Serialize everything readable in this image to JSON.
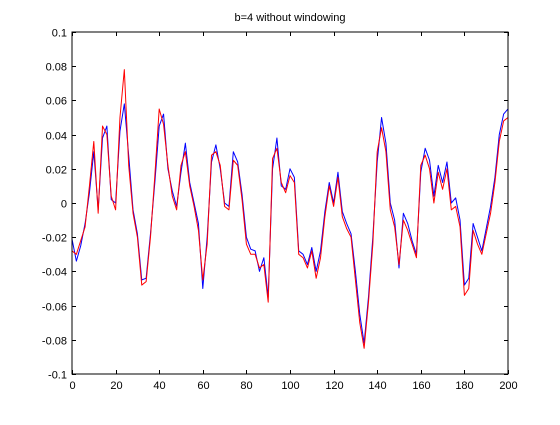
{
  "chart_data": {
    "type": "line",
    "title": "b=4 without windowing",
    "xlabel": "",
    "ylabel": "",
    "xlim": [
      0,
      200
    ],
    "ylim": [
      -0.1,
      0.1
    ],
    "xticks": [
      0,
      20,
      40,
      60,
      80,
      100,
      120,
      140,
      160,
      180,
      200
    ],
    "xtick_labels": [
      "0",
      "20",
      "40",
      "60",
      "80",
      "100",
      "120",
      "140",
      "160",
      "180",
      "200"
    ],
    "yticks": [
      -0.1,
      -0.08,
      -0.06,
      -0.04,
      -0.02,
      0,
      0.02,
      0.04,
      0.06,
      0.08,
      0.1
    ],
    "ytick_labels": [
      "-0.1",
      "-0.08",
      "-0.06",
      "-0.04",
      "-0.02",
      "0",
      "0.02",
      "0.04",
      "0.06",
      "0.08",
      "0.1"
    ],
    "grid": false,
    "legend": false,
    "x": [
      0,
      2,
      4,
      6,
      8,
      10,
      12,
      14,
      16,
      18,
      20,
      22,
      24,
      26,
      28,
      30,
      32,
      34,
      36,
      38,
      40,
      42,
      44,
      46,
      48,
      50,
      52,
      54,
      56,
      58,
      60,
      62,
      64,
      66,
      68,
      70,
      72,
      74,
      76,
      78,
      80,
      82,
      84,
      86,
      88,
      90,
      92,
      94,
      96,
      98,
      100,
      102,
      104,
      106,
      108,
      110,
      112,
      114,
      116,
      118,
      120,
      122,
      124,
      126,
      128,
      130,
      132,
      134,
      136,
      138,
      140,
      142,
      144,
      146,
      148,
      150,
      152,
      154,
      156,
      158,
      160,
      162,
      164,
      166,
      168,
      170,
      172,
      174,
      176,
      178,
      180,
      182,
      184,
      186,
      188,
      190,
      192,
      194,
      196,
      198,
      200
    ],
    "series": [
      {
        "color": "#0000ff",
        "values": [
          -0.021,
          -0.034,
          -0.025,
          -0.012,
          0.006,
          0.03,
          -0.004,
          0.038,
          0.045,
          0.002,
          0.0,
          0.042,
          0.058,
          0.028,
          -0.004,
          -0.018,
          -0.045,
          -0.044,
          -0.018,
          0.012,
          0.045,
          0.052,
          0.02,
          0.007,
          -0.002,
          0.018,
          0.035,
          0.012,
          0.0,
          -0.012,
          -0.05,
          -0.02,
          0.024,
          0.034,
          0.02,
          0.0,
          -0.002,
          0.03,
          0.024,
          0.005,
          -0.02,
          -0.027,
          -0.028,
          -0.04,
          -0.032,
          -0.055,
          0.02,
          0.038,
          0.01,
          0.008,
          0.02,
          0.015,
          -0.028,
          -0.03,
          -0.036,
          -0.026,
          -0.04,
          -0.028,
          -0.005,
          0.012,
          0.0,
          0.018,
          -0.005,
          -0.012,
          -0.018,
          -0.04,
          -0.065,
          -0.082,
          -0.055,
          -0.02,
          0.024,
          0.05,
          0.035,
          0.0,
          -0.01,
          -0.038,
          -0.006,
          -0.012,
          -0.022,
          -0.03,
          0.018,
          0.032,
          0.025,
          0.004,
          0.022,
          0.012,
          0.024,
          0.0,
          0.003,
          -0.01,
          -0.048,
          -0.044,
          -0.012,
          -0.02,
          -0.028,
          -0.015,
          -0.002,
          0.015,
          0.04,
          0.052,
          0.055
        ]
      },
      {
        "color": "#ff0000",
        "values": [
          -0.028,
          -0.03,
          -0.022,
          -0.014,
          0.01,
          0.036,
          -0.006,
          0.045,
          0.04,
          0.004,
          -0.004,
          0.05,
          0.078,
          0.022,
          -0.006,
          -0.02,
          -0.048,
          -0.046,
          -0.02,
          0.016,
          0.055,
          0.046,
          0.022,
          0.004,
          -0.004,
          0.022,
          0.03,
          0.01,
          -0.002,
          -0.016,
          -0.045,
          -0.024,
          0.028,
          0.03,
          0.022,
          -0.002,
          -0.004,
          0.025,
          0.022,
          0.002,
          -0.024,
          -0.03,
          -0.03,
          -0.038,
          -0.036,
          -0.058,
          0.026,
          0.032,
          0.012,
          0.006,
          0.016,
          0.012,
          -0.03,
          -0.032,
          -0.038,
          -0.028,
          -0.044,
          -0.032,
          -0.008,
          0.01,
          -0.002,
          0.015,
          -0.008,
          -0.015,
          -0.02,
          -0.045,
          -0.07,
          -0.085,
          -0.058,
          -0.024,
          0.03,
          0.044,
          0.03,
          -0.004,
          -0.014,
          -0.036,
          -0.01,
          -0.016,
          -0.024,
          -0.032,
          0.022,
          0.028,
          0.02,
          0.0,
          0.018,
          0.008,
          0.02,
          -0.004,
          -0.002,
          -0.014,
          -0.054,
          -0.05,
          -0.016,
          -0.024,
          -0.03,
          -0.018,
          -0.006,
          0.012,
          0.036,
          0.048,
          0.05
        ]
      }
    ]
  }
}
